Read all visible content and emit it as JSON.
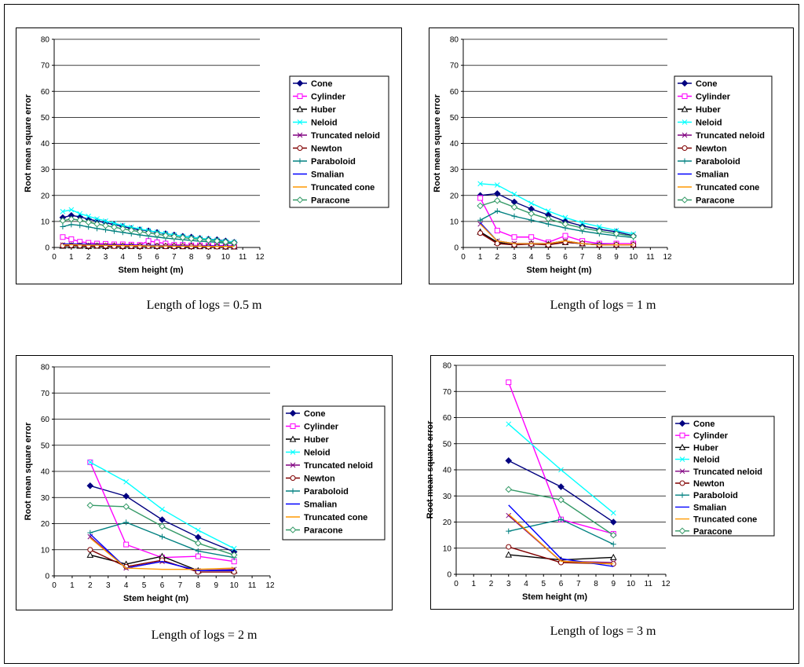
{
  "series_styles": [
    {
      "name": "Cone",
      "color": "#000080",
      "marker": "diamond-filled"
    },
    {
      "name": "Cylinder",
      "color": "#FF00FF",
      "marker": "square-open"
    },
    {
      "name": "Huber",
      "color": "#000000",
      "marker": "triangle-open"
    },
    {
      "name": "Neloid",
      "color": "#00FFFF",
      "marker": "x"
    },
    {
      "name": "Truncated neloid",
      "color": "#800080",
      "marker": "x"
    },
    {
      "name": "Newton",
      "color": "#800000",
      "marker": "circle-open"
    },
    {
      "name": "Paraboloid",
      "color": "#008080",
      "marker": "plus"
    },
    {
      "name": "Smalian",
      "color": "#0000FF",
      "marker": "none"
    },
    {
      "name": "Truncated cone",
      "color": "#FF9900",
      "marker": "none"
    },
    {
      "name": "Paracone",
      "color": "#339966",
      "marker": "diamond-open"
    }
  ],
  "captions": [
    "Length of logs = 0.5 m",
    "Length of logs = 1 m",
    "Length of logs = 2 m",
    "Length of logs = 3 m"
  ],
  "chart_data": [
    {
      "type": "line",
      "title": "",
      "xlabel": "Stem height (m)",
      "ylabel": "Root mean square error",
      "xlim": [
        0,
        12
      ],
      "ylim": [
        0,
        80
      ],
      "xticks": [
        0,
        1,
        2,
        3,
        4,
        5,
        6,
        7,
        8,
        9,
        10,
        11,
        12
      ],
      "yticks": [
        0,
        10,
        20,
        30,
        40,
        50,
        60,
        70,
        80
      ],
      "legend": "right",
      "x": [
        0.5,
        1,
        1.5,
        2,
        2.5,
        3,
        3.5,
        4,
        4.5,
        5,
        5.5,
        6,
        6.5,
        7,
        7.5,
        8,
        8.5,
        9,
        9.5,
        10,
        10.5
      ],
      "series": [
        {
          "name": "Cone",
          "values": [
            11.5,
            12.3,
            11.8,
            10.9,
            10.2,
            9.5,
            8.8,
            8.1,
            7.3,
            6.8,
            6.4,
            5.8,
            5.3,
            4.8,
            4.3,
            4.0,
            3.5,
            3.2,
            3.0,
            2.5,
            2.0
          ]
        },
        {
          "name": "Cylinder",
          "values": [
            4.0,
            3.2,
            2.2,
            1.8,
            1.5,
            1.4,
            1.2,
            1.2,
            1.1,
            1.0,
            2.5,
            2.0,
            1.5,
            1.0,
            1.0,
            0.8,
            0.8,
            0.7,
            0.7,
            0.7,
            0.6
          ]
        },
        {
          "name": "Huber",
          "values": [
            0.6,
            0.7,
            0.6,
            0.5,
            0.6,
            0.5,
            0.6,
            0.5,
            0.5,
            0.5,
            0.6,
            0.5,
            0.5,
            0.5,
            0.4,
            0.4,
            0.4,
            0.4,
            0.4,
            0.3,
            0.3
          ]
        },
        {
          "name": "Neloid",
          "values": [
            13.8,
            14.5,
            13.0,
            12.0,
            11.0,
            10.2,
            9.3,
            8.5,
            7.8,
            7.1,
            6.5,
            5.9,
            5.4,
            4.8,
            4.3,
            3.9,
            3.5,
            3.2,
            2.8,
            2.4,
            2.0
          ]
        },
        {
          "name": "Truncated neloid",
          "values": [
            1.0,
            1.1,
            1.0,
            0.9,
            0.8,
            0.8,
            0.7,
            0.7,
            0.7,
            0.6,
            0.6,
            0.6,
            0.5,
            0.5,
            0.5,
            0.5,
            0.4,
            0.4,
            0.4,
            0.4,
            0.3
          ]
        },
        {
          "name": "Newton",
          "values": [
            0.7,
            0.8,
            0.7,
            0.6,
            0.6,
            0.6,
            0.5,
            0.5,
            0.5,
            0.5,
            0.5,
            0.5,
            0.4,
            0.4,
            0.4,
            0.4,
            0.4,
            0.3,
            0.3,
            0.3,
            0.3
          ]
        },
        {
          "name": "Paraboloid",
          "values": [
            8.0,
            8.8,
            8.5,
            7.9,
            7.3,
            6.8,
            6.3,
            5.8,
            5.3,
            4.8,
            4.4,
            4.0,
            3.6,
            3.3,
            3.0,
            2.7,
            2.4,
            2.2,
            2.0,
            1.7,
            1.5
          ]
        },
        {
          "name": "Smalian",
          "values": [
            1.3,
            1.4,
            1.3,
            1.2,
            1.1,
            1.0,
            1.0,
            0.9,
            0.9,
            0.8,
            0.8,
            0.8,
            0.7,
            0.7,
            0.7,
            0.6,
            0.6,
            0.6,
            0.5,
            0.5,
            0.5
          ]
        },
        {
          "name": "Truncated cone",
          "values": [
            1.0,
            1.1,
            1.0,
            0.9,
            0.9,
            0.8,
            0.8,
            0.7,
            0.7,
            0.7,
            0.6,
            0.6,
            0.6,
            0.5,
            0.5,
            0.5,
            0.5,
            0.4,
            0.4,
            0.4,
            0.4
          ]
        },
        {
          "name": "Paracone",
          "values": [
            10.3,
            10.9,
            10.5,
            9.7,
            9.0,
            8.4,
            7.8,
            7.2,
            6.6,
            6.1,
            5.6,
            5.1,
            4.6,
            4.2,
            3.8,
            3.4,
            3.1,
            2.8,
            2.5,
            2.1,
            1.8
          ]
        }
      ]
    },
    {
      "type": "line",
      "title": "",
      "xlabel": "Stem height (m)",
      "ylabel": "Root mean square error",
      "xlim": [
        0,
        12
      ],
      "ylim": [
        0,
        80
      ],
      "xticks": [
        0,
        1,
        2,
        3,
        4,
        5,
        6,
        7,
        8,
        9,
        10,
        11,
        12
      ],
      "yticks": [
        0,
        10,
        20,
        30,
        40,
        50,
        60,
        70,
        80
      ],
      "legend": "right",
      "x": [
        1,
        2,
        3,
        4,
        5,
        6,
        7,
        8,
        9,
        10
      ],
      "series": [
        {
          "name": "Cone",
          "values": [
            20.0,
            20.7,
            17.5,
            14.8,
            12.5,
            10.0,
            8.3,
            7.0,
            6.0,
            4.5
          ]
        },
        {
          "name": "Cylinder",
          "values": [
            19.0,
            6.5,
            4.0,
            4.0,
            2.0,
            4.5,
            2.5,
            1.5,
            1.5,
            1.5
          ]
        },
        {
          "name": "Huber",
          "values": [
            6.0,
            2.0,
            1.0,
            1.5,
            1.2,
            2.0,
            1.5,
            1.0,
            1.0,
            1.0
          ]
        },
        {
          "name": "Neloid",
          "values": [
            24.5,
            24.0,
            20.5,
            17.0,
            14.0,
            11.5,
            9.5,
            8.0,
            6.5,
            5.2
          ]
        },
        {
          "name": "Truncated neloid",
          "values": [
            9.0,
            2.5,
            1.5,
            1.5,
            1.5,
            2.5,
            1.5,
            1.0,
            1.0,
            1.0
          ]
        },
        {
          "name": "Newton",
          "values": [
            5.5,
            1.5,
            1.0,
            1.3,
            1.0,
            2.0,
            1.5,
            1.0,
            1.0,
            1.0
          ]
        },
        {
          "name": "Paraboloid",
          "values": [
            10.5,
            14.0,
            12.0,
            10.5,
            9.0,
            7.5,
            6.3,
            5.3,
            4.5,
            3.8
          ]
        },
        {
          "name": "Smalian",
          "values": [
            9.5,
            2.5,
            1.5,
            1.5,
            1.5,
            2.5,
            1.5,
            1.2,
            1.0,
            1.0
          ]
        },
        {
          "name": "Truncated cone",
          "values": [
            9.0,
            2.5,
            1.5,
            1.5,
            1.5,
            2.5,
            1.5,
            1.0,
            1.0,
            1.0
          ]
        },
        {
          "name": "Paracone",
          "values": [
            16.0,
            18.0,
            15.5,
            13.0,
            11.0,
            9.0,
            7.5,
            6.3,
            5.3,
            4.3
          ]
        }
      ]
    },
    {
      "type": "line",
      "title": "",
      "xlabel": "Stem height (m)",
      "ylabel": "Root mean square error",
      "xlim": [
        0,
        12
      ],
      "ylim": [
        0,
        80
      ],
      "xticks": [
        0,
        1,
        2,
        3,
        4,
        5,
        6,
        7,
        8,
        9,
        10,
        11,
        12
      ],
      "yticks": [
        0,
        10,
        20,
        30,
        40,
        50,
        60,
        70,
        80
      ],
      "legend": "right",
      "x": [
        2,
        4,
        6,
        8,
        10
      ],
      "series": [
        {
          "name": "Cone",
          "values": [
            34.5,
            30.5,
            21.5,
            14.8,
            9.2
          ]
        },
        {
          "name": "Cylinder",
          "values": [
            43.5,
            12.0,
            7.0,
            7.5,
            5.5
          ]
        },
        {
          "name": "Huber",
          "values": [
            8.0,
            4.5,
            7.5,
            2.0,
            2.0
          ]
        },
        {
          "name": "Neloid",
          "values": [
            43.5,
            36.0,
            25.5,
            17.5,
            10.5
          ]
        },
        {
          "name": "Truncated neloid",
          "values": [
            15.0,
            3.0,
            5.5,
            2.0,
            2.5
          ]
        },
        {
          "name": "Newton",
          "values": [
            10.0,
            3.5,
            6.0,
            1.5,
            1.5
          ]
        },
        {
          "name": "Paraboloid",
          "values": [
            16.5,
            20.5,
            15.0,
            9.5,
            7.0
          ]
        },
        {
          "name": "Smalian",
          "values": [
            16.0,
            3.0,
            5.5,
            2.0,
            2.0
          ]
        },
        {
          "name": "Truncated cone",
          "values": [
            14.5,
            3.0,
            2.5,
            2.5,
            3.0
          ]
        },
        {
          "name": "Paracone",
          "values": [
            27.0,
            26.5,
            19.0,
            12.5,
            8.0
          ]
        }
      ]
    },
    {
      "type": "line",
      "title": "",
      "xlabel": "Stem height (m)",
      "ylabel": "Root mean square error",
      "xlim": [
        0,
        12
      ],
      "ylim": [
        0,
        80
      ],
      "xticks": [
        0,
        1,
        2,
        3,
        4,
        5,
        6,
        7,
        8,
        9,
        10,
        11,
        12
      ],
      "yticks": [
        0,
        10,
        20,
        30,
        40,
        50,
        60,
        70,
        80
      ],
      "legend": "right",
      "x": [
        3,
        6,
        9
      ],
      "series": [
        {
          "name": "Cone",
          "values": [
            43.5,
            33.5,
            20.0
          ]
        },
        {
          "name": "Cylinder",
          "values": [
            73.5,
            21.0,
            15.5
          ]
        },
        {
          "name": "Huber",
          "values": [
            7.5,
            5.5,
            6.5
          ]
        },
        {
          "name": "Neloid",
          "values": [
            57.5,
            40.0,
            23.5
          ]
        },
        {
          "name": "Truncated neloid",
          "values": [
            22.5,
            5.0,
            4.5
          ]
        },
        {
          "name": "Newton",
          "values": [
            10.5,
            4.5,
            4.0
          ]
        },
        {
          "name": "Paraboloid",
          "values": [
            16.5,
            21.0,
            11.5
          ]
        },
        {
          "name": "Smalian",
          "values": [
            26.5,
            6.0,
            3.0
          ]
        },
        {
          "name": "Truncated cone",
          "values": [
            23.0,
            5.0,
            4.0
          ]
        },
        {
          "name": "Paracone",
          "values": [
            32.5,
            28.5,
            15.0
          ]
        }
      ]
    }
  ]
}
